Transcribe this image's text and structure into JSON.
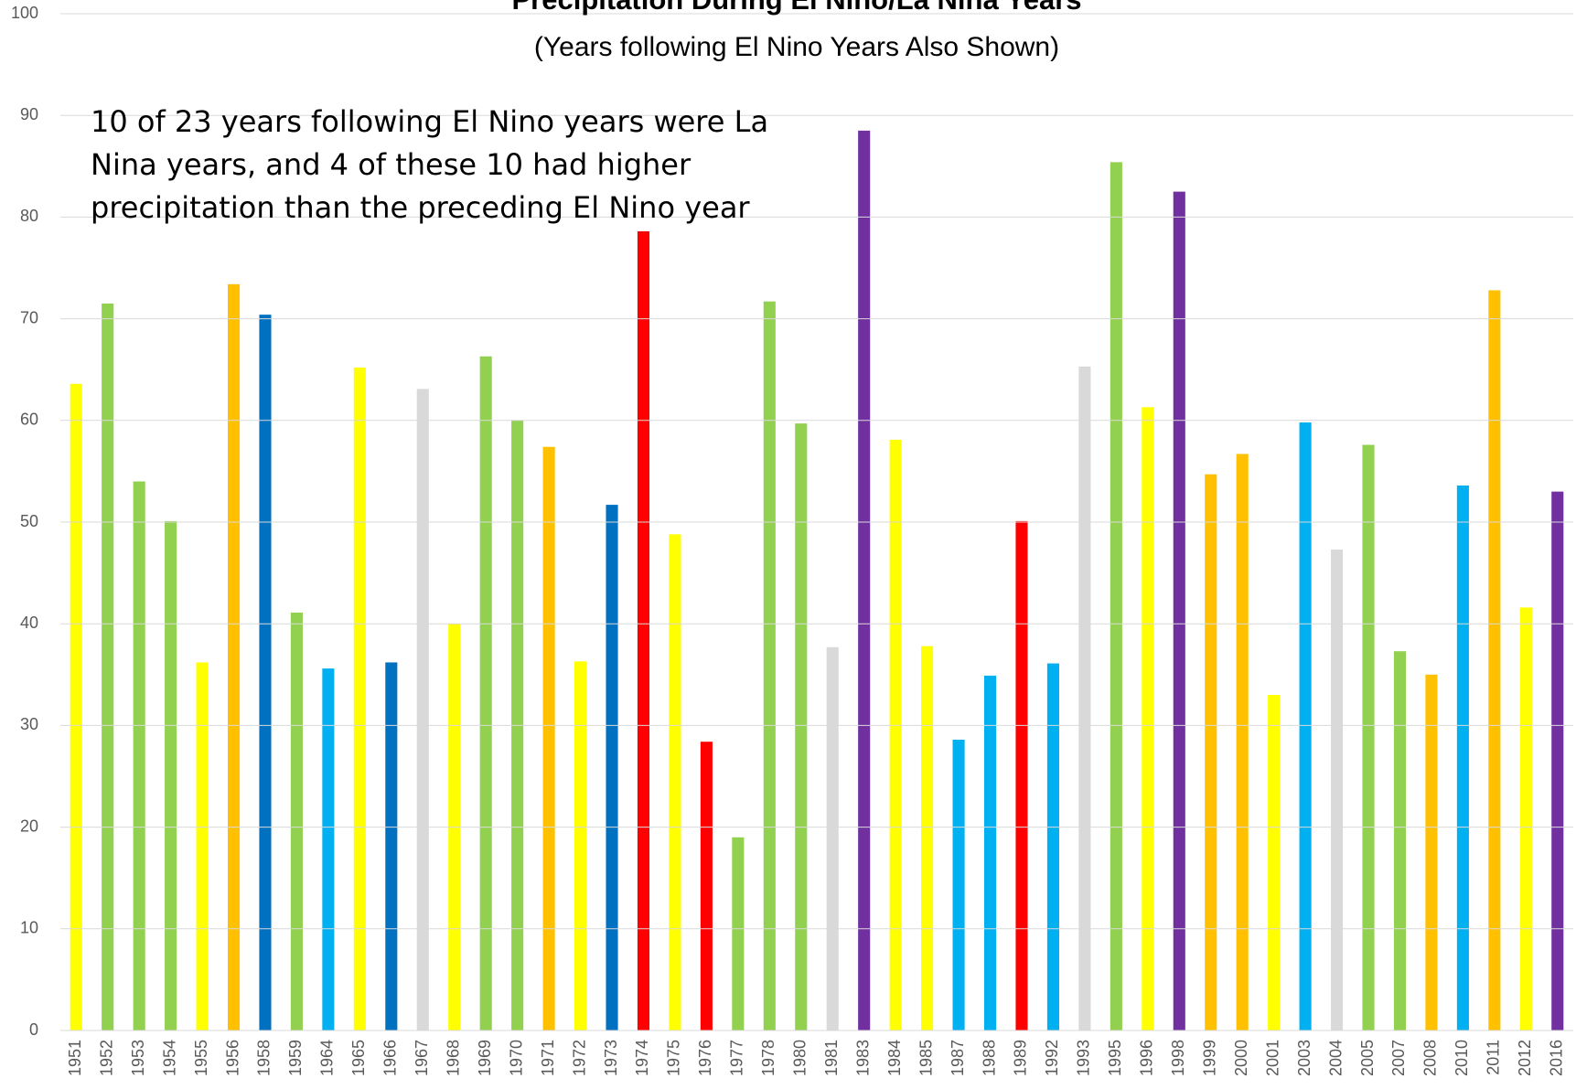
{
  "chart_data": {
    "type": "bar",
    "title": "Precipitation During El Nino/La Nina Years",
    "subtitle": "(Years following El Nino Years Also Shown)",
    "annotation": "10 of 23 years following El Nino years were La Nina years, and 4 of these 10 had higher precipitation than the preceding El Nino year",
    "categories": [
      "1951",
      "1952",
      "1953",
      "1954",
      "1955",
      "1956",
      "1958",
      "1959",
      "1964",
      "1965",
      "1966",
      "1967",
      "1968",
      "1969",
      "1970",
      "1971",
      "1972",
      "1973",
      "1974",
      "1975",
      "1976",
      "1977",
      "1978",
      "1980",
      "1981",
      "1983",
      "1984",
      "1985",
      "1987",
      "1988",
      "1989",
      "1992",
      "1993",
      "1995",
      "1996",
      "1998",
      "1999",
      "2000",
      "2001",
      "2003",
      "2004",
      "2005",
      "2007",
      "2008",
      "2010",
      "2011",
      "2012",
      "2016"
    ],
    "values": [
      63.6,
      71.5,
      54,
      50.1,
      36.2,
      73.4,
      70.4,
      41.1,
      35.6,
      65.2,
      36.2,
      63.1,
      40,
      66.3,
      60,
      57.4,
      36.3,
      51.7,
      78.6,
      48.8,
      28.4,
      19,
      71.7,
      59.7,
      37.7,
      88.5,
      58.1,
      37.8,
      28.6,
      34.9,
      50.1,
      36.1,
      65.3,
      85.4,
      61.3,
      82.5,
      54.7,
      56.7,
      33,
      59.8,
      47.3,
      57.6,
      37.3,
      35,
      53.6,
      72.8,
      41.6,
      53
    ],
    "colors": [
      "#ffff00",
      "#92d050",
      "#92d050",
      "#92d050",
      "#ffff00",
      "#ffc000",
      "#0070c0",
      "#92d050",
      "#00b0f0",
      "#ffff00",
      "#0070c0",
      "#d9d9d9",
      "#ffff00",
      "#92d050",
      "#92d050",
      "#ffc000",
      "#ffff00",
      "#0070c0",
      "#ff0000",
      "#ffff00",
      "#ff0000",
      "#92d050",
      "#92d050",
      "#92d050",
      "#d9d9d9",
      "#7030a0",
      "#ffff00",
      "#ffff00",
      "#00b0f0",
      "#00b0f0",
      "#ff0000",
      "#00b0f0",
      "#d9d9d9",
      "#92d050",
      "#ffff00",
      "#7030a0",
      "#ffc000",
      "#ffc000",
      "#ffff00",
      "#00b0f0",
      "#d9d9d9",
      "#92d050",
      "#92d050",
      "#ffc000",
      "#00b0f0",
      "#ffc000",
      "#ffff00",
      "#7030a0"
    ],
    "ylim": [
      0,
      100
    ],
    "yticks": [
      0,
      10,
      20,
      30,
      40,
      50,
      60,
      70,
      80,
      90,
      100
    ],
    "grid": true
  }
}
